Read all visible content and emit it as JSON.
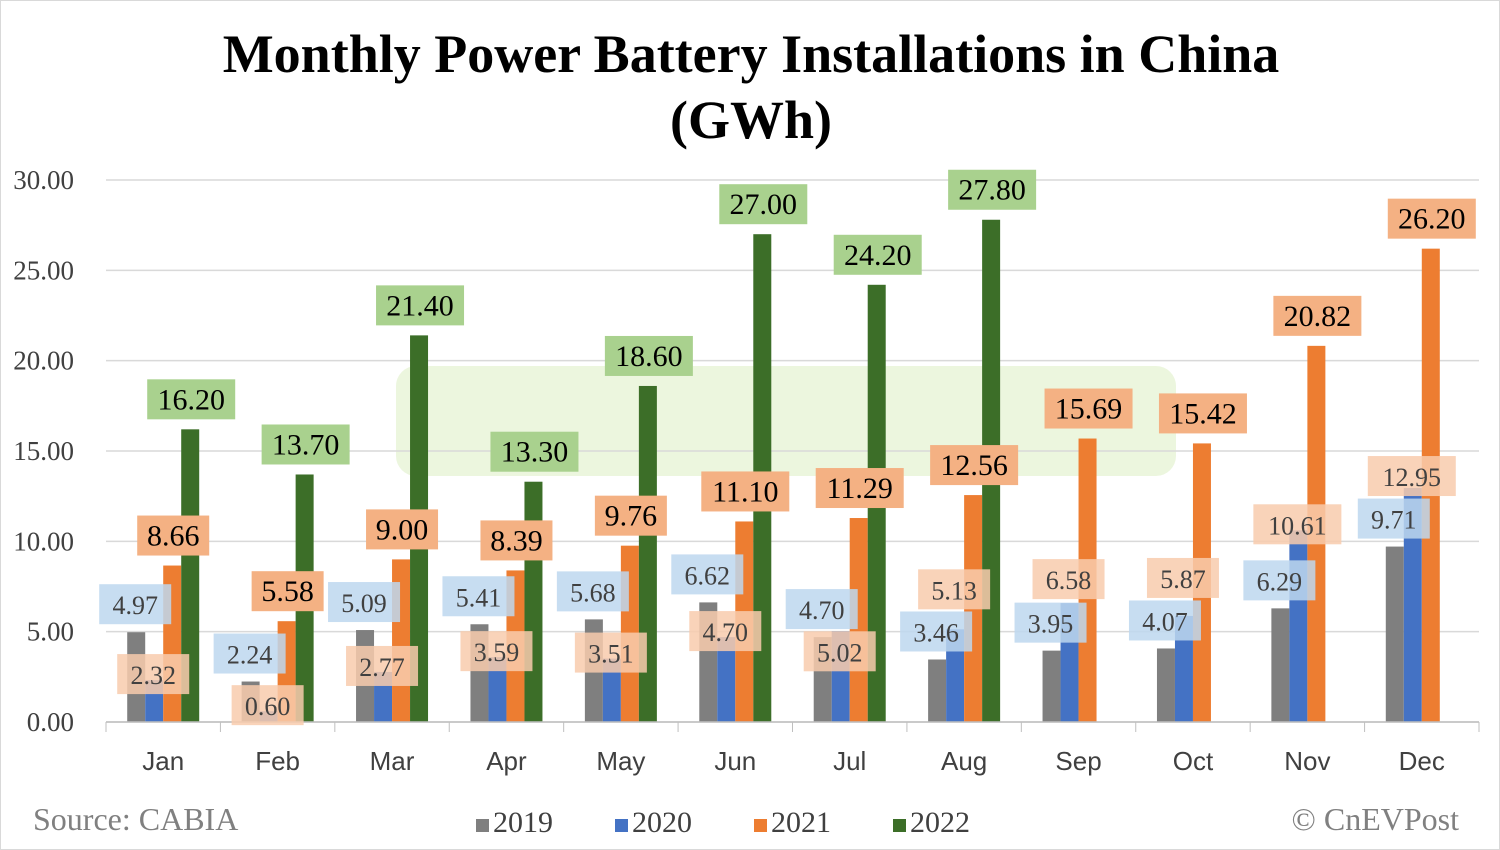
{
  "chart_data": {
    "type": "bar",
    "title": "Monthly Power Battery Installations in China (GWh)",
    "categories": [
      "Jan",
      "Feb",
      "Mar",
      "Apr",
      "May",
      "Jun",
      "Jul",
      "Aug",
      "Sep",
      "Oct",
      "Nov",
      "Dec"
    ],
    "series": [
      {
        "name": "2019",
        "color": "#7f7f7f",
        "label_bg": "#bdd7ee",
        "values": [
          4.97,
          2.24,
          5.09,
          5.41,
          5.68,
          6.62,
          4.7,
          3.46,
          3.95,
          4.07,
          6.29,
          9.71
        ]
      },
      {
        "name": "2020",
        "color": "#4472c4",
        "label_bg": "#f8cbad",
        "values": [
          2.32,
          0.6,
          2.77,
          3.59,
          3.51,
          4.7,
          5.02,
          5.13,
          6.58,
          5.87,
          10.61,
          12.95
        ]
      },
      {
        "name": "2021",
        "color": "#ed7d31",
        "label_bg": "#f4b183",
        "values": [
          8.66,
          5.58,
          9.0,
          8.39,
          9.76,
          11.1,
          11.29,
          12.56,
          15.69,
          15.42,
          20.82,
          26.2
        ]
      },
      {
        "name": "2022",
        "color": "#3c6e28",
        "label_bg": "#a9d18e",
        "values": [
          16.2,
          13.7,
          21.4,
          13.3,
          18.6,
          27.0,
          24.2,
          27.8,
          null,
          null,
          null,
          null
        ]
      }
    ],
    "yticks": [
      "0.00",
      "5.00",
      "10.00",
      "15.00",
      "20.00",
      "25.00",
      "30.00"
    ],
    "ylim": [
      0,
      30
    ],
    "grid": true,
    "legend_position": "bottom"
  },
  "title_line1": "Monthly Power Battery Installations in China",
  "title_line2": "(GWh)",
  "source": "Source: CABIA",
  "copyright": "© CnEVPost",
  "watermark": "CnEVPost"
}
